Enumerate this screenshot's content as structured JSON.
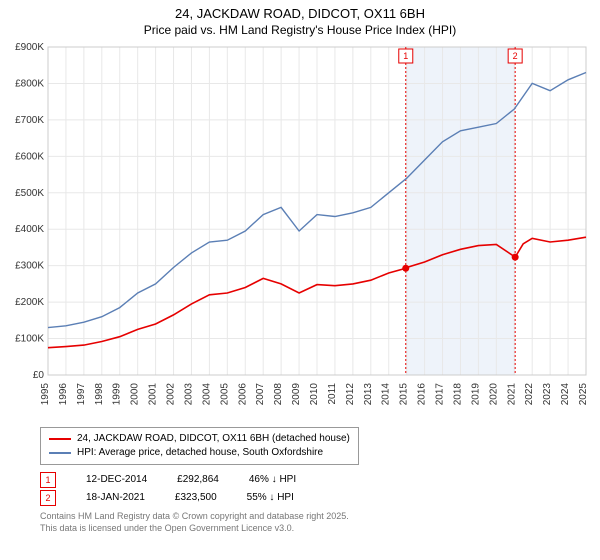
{
  "title_line1": "24, JACKDAW ROAD, DIDCOT, OX11 6BH",
  "title_line2": "Price paid vs. HM Land Registry's House Price Index (HPI)",
  "chart": {
    "type": "line",
    "background_color": "#ffffff",
    "plot_border_color": "#cccccc",
    "grid_color": "#e8e8e8",
    "shaded_region_color": "#eef3fa",
    "x_year_start": 1995,
    "x_year_end": 2025,
    "x_ticks": [
      "1995",
      "1996",
      "1997",
      "1998",
      "1999",
      "2000",
      "2001",
      "2002",
      "2003",
      "2004",
      "2005",
      "2006",
      "2007",
      "2008",
      "2009",
      "2010",
      "2011",
      "2012",
      "2013",
      "2014",
      "2015",
      "2016",
      "2017",
      "2018",
      "2019",
      "2020",
      "2021",
      "2022",
      "2023",
      "2024",
      "2025"
    ],
    "y_min": 0,
    "y_max": 900000,
    "y_tick_step": 100000,
    "y_ticks": [
      "£0",
      "£100K",
      "£200K",
      "£300K",
      "£400K",
      "£500K",
      "£600K",
      "£700K",
      "£800K",
      "£900K"
    ],
    "series": [
      {
        "name": "property",
        "label": "24, JACKDAW ROAD, DIDCOT, OX11 6BH (detached house)",
        "color": "#e60000",
        "line_width": 1.6,
        "data": [
          [
            1995,
            75000
          ],
          [
            1996,
            78000
          ],
          [
            1997,
            82000
          ],
          [
            1998,
            92000
          ],
          [
            1999,
            105000
          ],
          [
            2000,
            125000
          ],
          [
            2001,
            140000
          ],
          [
            2002,
            165000
          ],
          [
            2003,
            195000
          ],
          [
            2004,
            220000
          ],
          [
            2005,
            225000
          ],
          [
            2006,
            240000
          ],
          [
            2007,
            265000
          ],
          [
            2008,
            250000
          ],
          [
            2009,
            225000
          ],
          [
            2010,
            248000
          ],
          [
            2011,
            245000
          ],
          [
            2012,
            250000
          ],
          [
            2013,
            260000
          ],
          [
            2014,
            280000
          ],
          [
            2014.95,
            292864
          ],
          [
            2015,
            295000
          ],
          [
            2016,
            310000
          ],
          [
            2017,
            330000
          ],
          [
            2018,
            345000
          ],
          [
            2019,
            355000
          ],
          [
            2020,
            358000
          ],
          [
            2021.05,
            323500
          ],
          [
            2021.5,
            360000
          ],
          [
            2022,
            375000
          ],
          [
            2023,
            365000
          ],
          [
            2024,
            370000
          ],
          [
            2025,
            378000
          ]
        ]
      },
      {
        "name": "hpi",
        "label": "HPI: Average price, detached house, South Oxfordshire",
        "color": "#5b7fb5",
        "line_width": 1.4,
        "data": [
          [
            1995,
            130000
          ],
          [
            1996,
            135000
          ],
          [
            1997,
            145000
          ],
          [
            1998,
            160000
          ],
          [
            1999,
            185000
          ],
          [
            2000,
            225000
          ],
          [
            2001,
            250000
          ],
          [
            2002,
            295000
          ],
          [
            2003,
            335000
          ],
          [
            2004,
            365000
          ],
          [
            2005,
            370000
          ],
          [
            2006,
            395000
          ],
          [
            2007,
            440000
          ],
          [
            2008,
            460000
          ],
          [
            2009,
            395000
          ],
          [
            2010,
            440000
          ],
          [
            2011,
            435000
          ],
          [
            2012,
            445000
          ],
          [
            2013,
            460000
          ],
          [
            2014,
            500000
          ],
          [
            2015,
            540000
          ],
          [
            2016,
            590000
          ],
          [
            2017,
            640000
          ],
          [
            2018,
            670000
          ],
          [
            2019,
            680000
          ],
          [
            2020,
            690000
          ],
          [
            2021,
            730000
          ],
          [
            2022,
            800000
          ],
          [
            2023,
            780000
          ],
          [
            2024,
            810000
          ],
          [
            2025,
            830000
          ]
        ]
      }
    ],
    "markers": [
      {
        "id": "1",
        "x_year": 2014.95,
        "date": "12-DEC-2014",
        "price": "£292,864",
        "delta": "46% ↓ HPI",
        "color": "#e60000",
        "series": "property",
        "marker_y": 292864
      },
      {
        "id": "2",
        "x_year": 2021.05,
        "date": "18-JAN-2021",
        "price": "£323,500",
        "delta": "55% ↓ HPI",
        "color": "#e60000",
        "series": "property",
        "marker_y": 323500
      }
    ],
    "title_fontsize": 13,
    "tick_fontsize": 10,
    "legend_fontsize": 10
  },
  "footer_line1": "Contains HM Land Registry data © Crown copyright and database right 2025.",
  "footer_line2": "This data is licensed under the Open Government Licence v3.0."
}
